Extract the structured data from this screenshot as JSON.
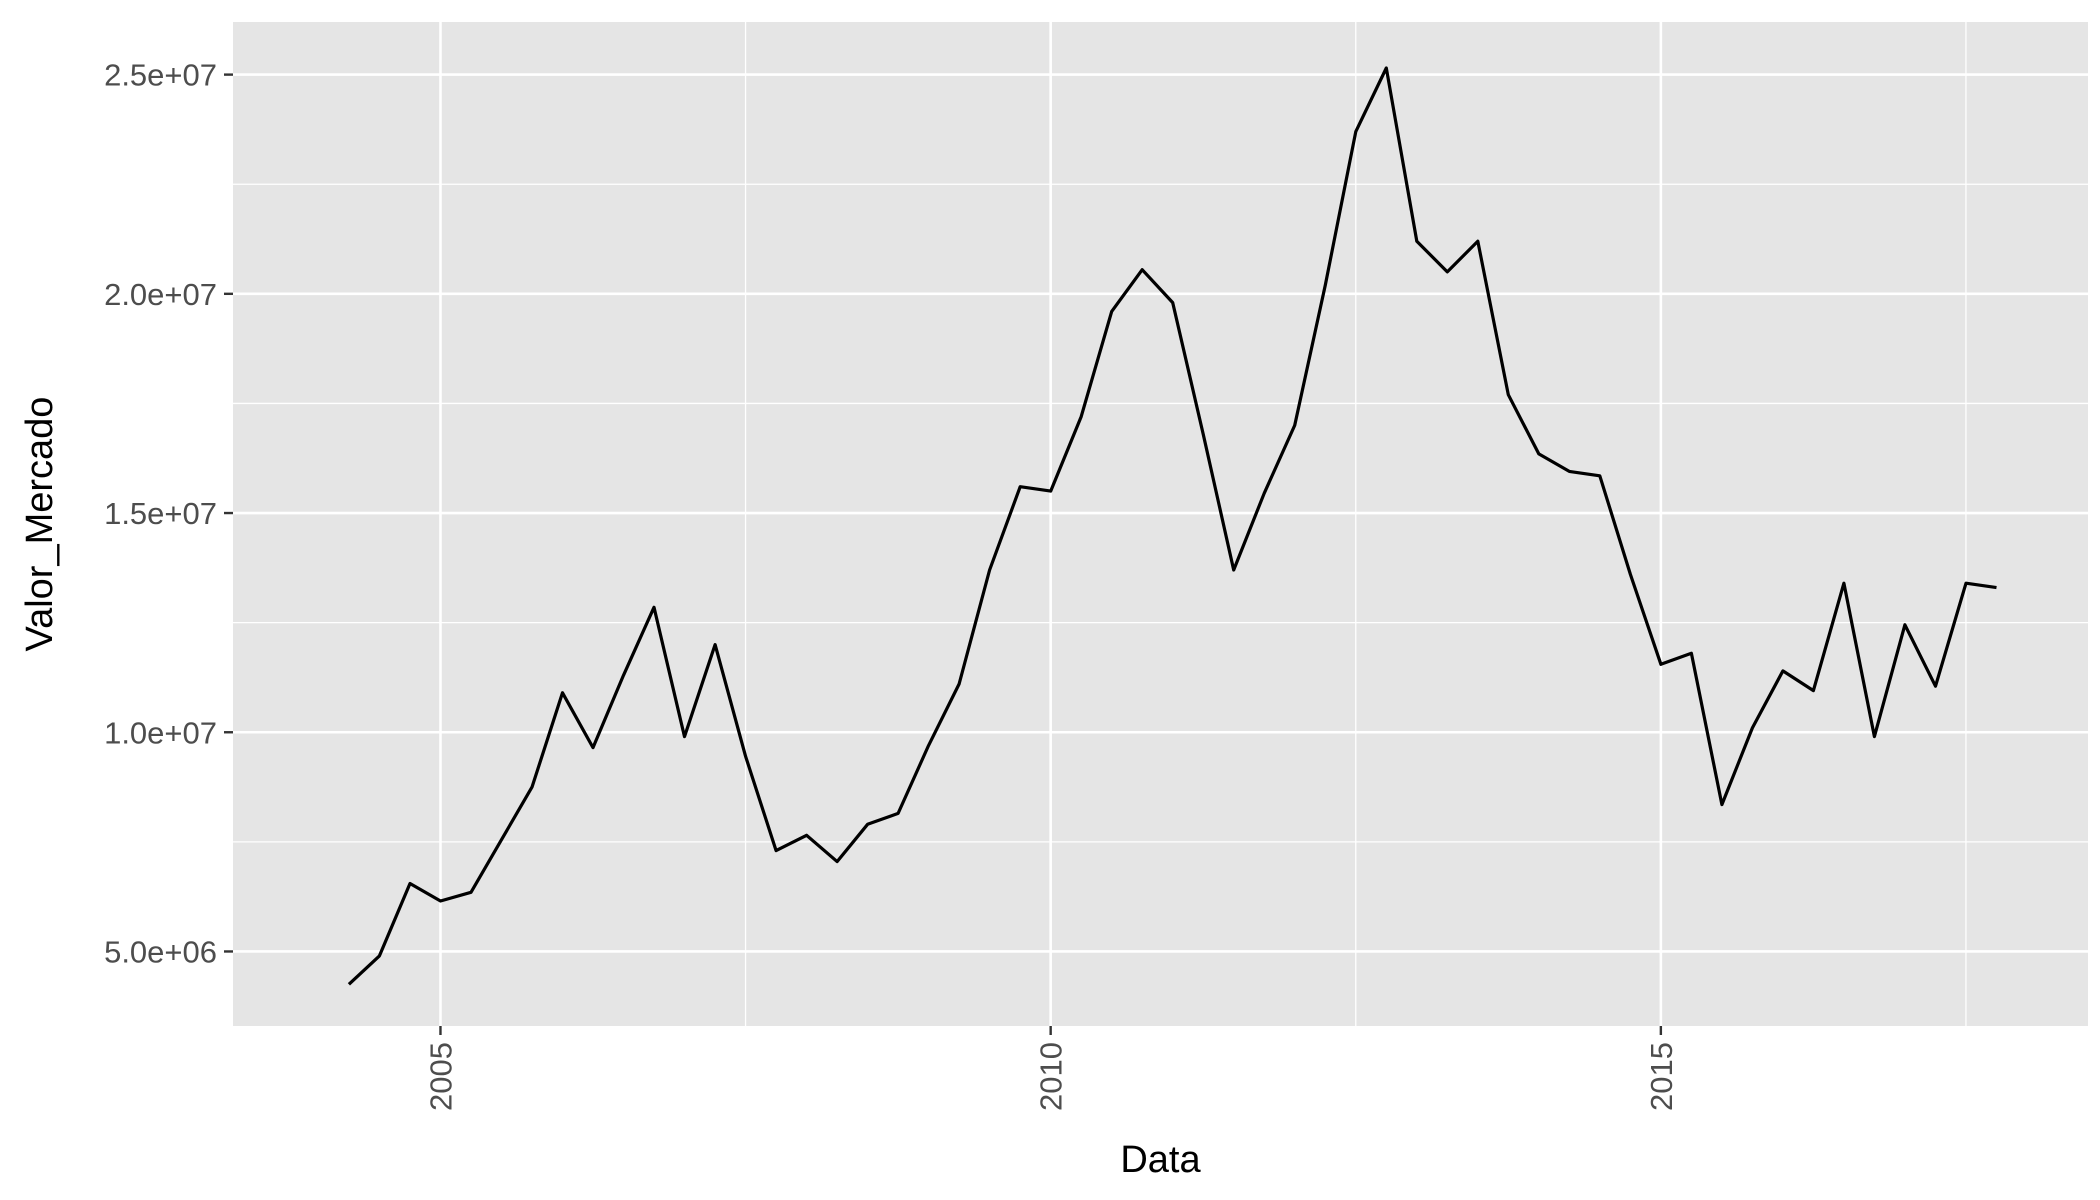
{
  "chart_data": {
    "type": "line",
    "xlabel": "Data",
    "ylabel": "Valor_Mercado",
    "x_ticks": [
      {
        "value": 2005,
        "label": "2005"
      },
      {
        "value": 2010,
        "label": "2010"
      },
      {
        "value": 2015,
        "label": "2015"
      }
    ],
    "y_ticks": [
      {
        "value": 5000000,
        "label": "5.0e+06"
      },
      {
        "value": 10000000,
        "label": "1.0e+07"
      },
      {
        "value": 15000000,
        "label": "1.5e+07"
      },
      {
        "value": 20000000,
        "label": "2.0e+07"
      },
      {
        "value": 25000000,
        "label": "2.5e+07"
      }
    ],
    "xlim": [
      2003.3,
      2018.5
    ],
    "ylim": [
      3300000,
      26200000
    ],
    "grid": true,
    "legend": "none",
    "colors": {
      "panel": "#e5e5e5",
      "grid": "#ffffff",
      "line": "#000000",
      "tick_label": "#4d4d4d"
    },
    "series": [
      {
        "x": [
          2004.25,
          2004.5,
          2004.75,
          2005.0,
          2005.25,
          2005.5,
          2005.75,
          2006.0,
          2006.25,
          2006.5,
          2006.75,
          2007.0,
          2007.25,
          2007.5,
          2007.75,
          2008.0,
          2008.25,
          2008.5,
          2008.75,
          2009.0,
          2009.25,
          2009.5,
          2009.75,
          2010.0,
          2010.25,
          2010.5,
          2010.75,
          2011.0,
          2011.25,
          2011.5,
          2011.75,
          2012.0,
          2012.25,
          2012.5,
          2012.75,
          2013.0,
          2013.25,
          2013.5,
          2013.75,
          2014.0,
          2014.25,
          2014.5,
          2014.75,
          2015.0,
          2015.25,
          2015.5,
          2015.75,
          2016.0,
          2016.25,
          2016.5,
          2016.75,
          2017.0,
          2017.25,
          2017.5,
          2017.75
        ],
        "y": [
          4250000,
          4900000,
          6550000,
          6150000,
          6350000,
          7550000,
          8750000,
          10900000,
          9650000,
          11300000,
          12850000,
          9900000,
          12000000,
          9450000,
          7300000,
          7650000,
          7050000,
          7900000,
          8150000,
          9700000,
          11100000,
          13700000,
          15600000,
          15500000,
          17200000,
          19600000,
          20550000,
          19800000,
          16800000,
          13700000,
          15450000,
          17000000,
          20200000,
          23700000,
          25150000,
          21200000,
          20500000,
          21200000,
          17700000,
          16350000,
          15950000,
          15850000,
          13600000,
          11550000,
          11800000,
          8350000,
          10100000,
          11400000,
          10950000,
          13400000,
          9900000,
          12450000,
          11050000,
          13400000,
          13300000
        ]
      }
    ]
  }
}
